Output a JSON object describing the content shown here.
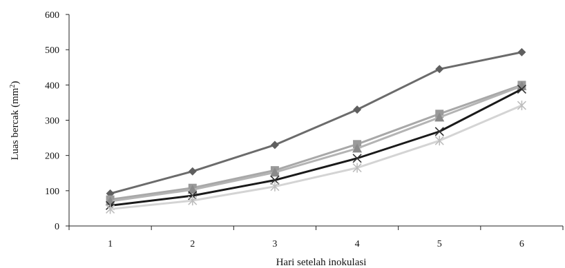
{
  "chart_data": {
    "type": "line",
    "x": [
      "1",
      "2",
      "3",
      "4",
      "5",
      "6"
    ],
    "xlabel": "Hari  setelah inokulasi",
    "ylabel": "Luas bercak (mm",
    "ylabel_superscript": "2",
    "ylabel_suffix": ")",
    "ylim": [
      0,
      600
    ],
    "yticks": [
      0,
      100,
      200,
      300,
      400,
      500,
      600
    ],
    "grid": false,
    "legend": "none",
    "series": [
      {
        "values": [
          92,
          155,
          230,
          330,
          445,
          493
        ],
        "color": "#6b6b6b",
        "marker": "diamond",
        "marker_color": "#5f5f5f"
      },
      {
        "values": [
          75,
          108,
          158,
          232,
          318,
          400
        ],
        "color": "#a8a8a8",
        "marker": "square",
        "marker_color": "#9a9a9a"
      },
      {
        "values": [
          70,
          103,
          152,
          220,
          308,
          397
        ],
        "color": "#b4b4b4",
        "marker": "triangle",
        "marker_color": "#8a8a8a"
      },
      {
        "values": [
          58,
          86,
          130,
          192,
          268,
          388
        ],
        "color": "#1a1a1a",
        "marker": "x",
        "marker_color": "#333333"
      },
      {
        "values": [
          48,
          72,
          112,
          165,
          242,
          342
        ],
        "color": "#d4d4d4",
        "marker": "star",
        "marker_color": "#bdbdbd"
      }
    ]
  }
}
